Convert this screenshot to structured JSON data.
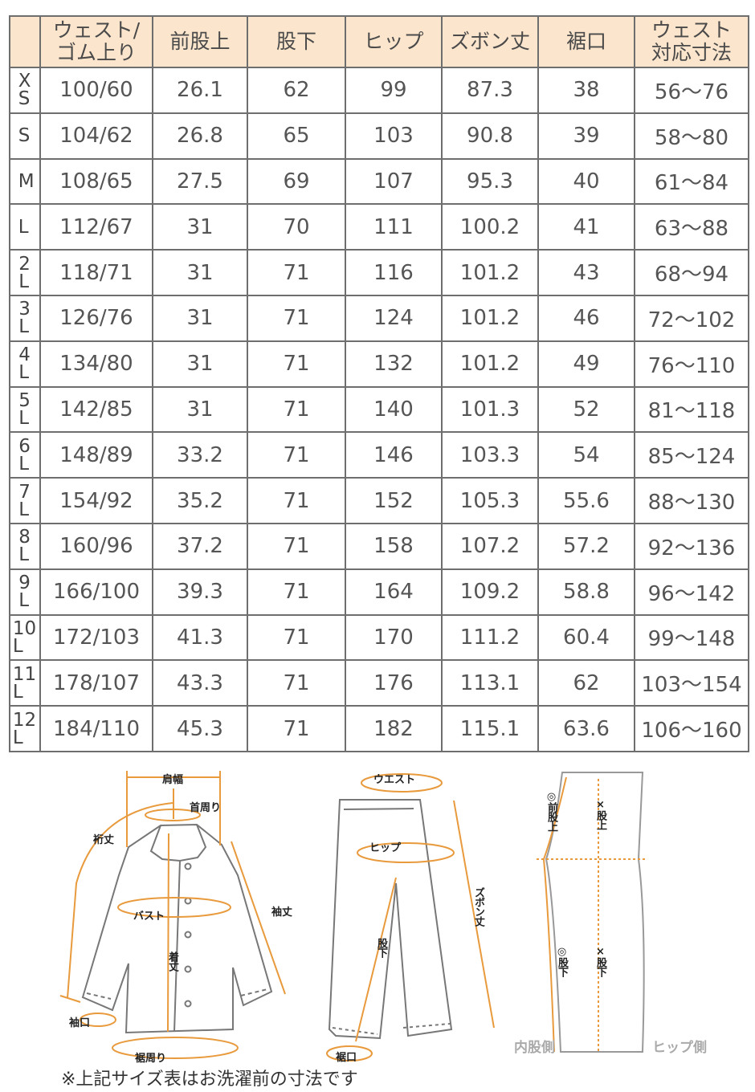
{
  "table": {
    "headers": [
      "",
      "ウェスト/\nゴム上り",
      "前股上",
      "股下",
      "ヒップ",
      "ズボン丈",
      "裾口",
      "ウェスト\n対応寸法"
    ],
    "rows": [
      [
        "XS",
        "100/60",
        "26.1",
        "62",
        "99",
        "87.3",
        "38",
        "56～76"
      ],
      [
        "S",
        "104/62",
        "26.8",
        "65",
        "103",
        "90.8",
        "39",
        "58～80"
      ],
      [
        "M",
        "108/65",
        "27.5",
        "69",
        "107",
        "95.3",
        "40",
        "61～84"
      ],
      [
        "L",
        "112/67",
        "31",
        "70",
        "111",
        "100.2",
        "41",
        "63～88"
      ],
      [
        "2L",
        "118/71",
        "31",
        "71",
        "116",
        "101.2",
        "43",
        "68～94"
      ],
      [
        "3L",
        "126/76",
        "31",
        "71",
        "124",
        "101.2",
        "46",
        "72～102"
      ],
      [
        "4L",
        "134/80",
        "31",
        "71",
        "132",
        "101.2",
        "49",
        "76～110"
      ],
      [
        "5L",
        "142/85",
        "31",
        "71",
        "140",
        "101.3",
        "52",
        "81～118"
      ],
      [
        "6L",
        "148/89",
        "33.2",
        "71",
        "146",
        "103.3",
        "54",
        "85～124"
      ],
      [
        "7L",
        "154/92",
        "35.2",
        "71",
        "152",
        "105.3",
        "55.6",
        "88～130"
      ],
      [
        "8L",
        "160/96",
        "37.2",
        "71",
        "158",
        "107.2",
        "57.2",
        "92～136"
      ],
      [
        "9L",
        "166/100",
        "39.3",
        "71",
        "164",
        "109.2",
        "58.8",
        "96～142"
      ],
      [
        "10L",
        "172/103",
        "41.3",
        "71",
        "170",
        "111.2",
        "60.4",
        "99～148"
      ],
      [
        "11L",
        "178/107",
        "43.3",
        "71",
        "176",
        "113.1",
        "62",
        "103～154"
      ],
      [
        "12L",
        "184/110",
        "45.3",
        "71",
        "182",
        "115.1",
        "63.6",
        "106～160"
      ]
    ]
  },
  "diagram": {
    "jacket": {
      "shoulder": "肩幅",
      "neck": "首周り",
      "yuki": "裄丈",
      "sleeve": "袖丈",
      "bust": "バスト",
      "length": "着丈",
      "cuff": "袖口",
      "hem": "裾周り"
    },
    "pants": {
      "waist": "ウエスト",
      "hip": "ヒップ",
      "length": "ズボン丈",
      "inseam": "股下",
      "hem": "裾口"
    },
    "side": {
      "front_rise": "◎前股上",
      "rise": "×股上",
      "inseam_o": "◎股下",
      "inseam_x": "×股下",
      "inner": "内股側",
      "hip_side": "ヒップ側"
    },
    "accent_color": "#e89a3c",
    "line_color": "#777777"
  },
  "note": "※上記サイズ表はお洗濯前の寸法です",
  "colors": {
    "header_bg": "#fbe5cc",
    "border": "#6e6e6e"
  }
}
